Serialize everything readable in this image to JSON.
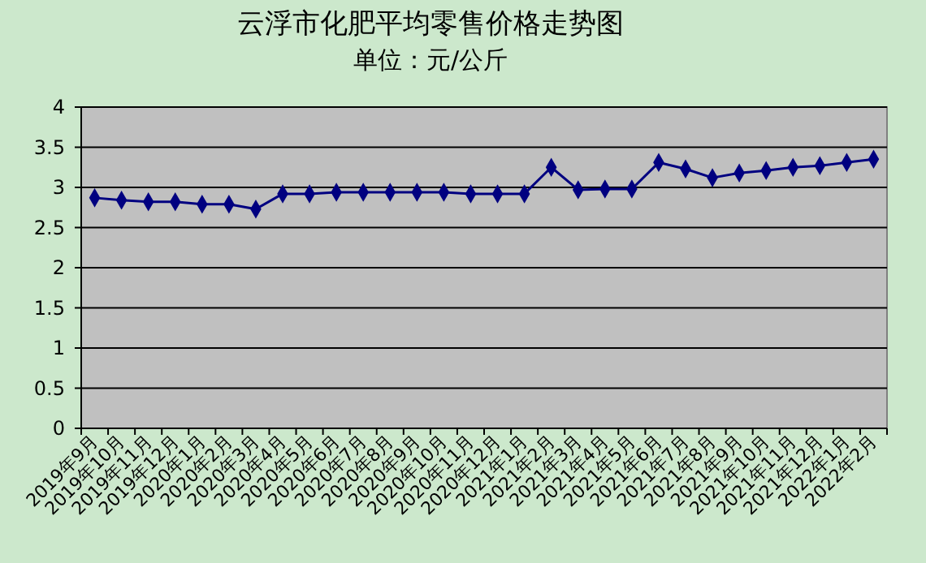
{
  "chart_data": {
    "type": "line",
    "title": "云浮市化肥平均零售价格走势图",
    "subtitle": "单位：元/公斤",
    "categories": [
      "2019年9月",
      "2019年10月",
      "2019年11月",
      "2019年12月",
      "2020年1月",
      "2020年2月",
      "2020年3月",
      "2020年4月",
      "2020年5月",
      "2020年6月",
      "2020年7月",
      "2020年8月",
      "2020年9月",
      "2020年10月",
      "2020年11月",
      "2020年12月",
      "2021年1月",
      "2021年2月",
      "2021年3月",
      "2021年4月",
      "2021年5月",
      "2021年6月",
      "2021年7月",
      "2021年8月",
      "2021年9月",
      "2021年10月",
      "2021年11月",
      "2021年12月",
      "2022年1月",
      "2022年2月"
    ],
    "series": [
      {
        "color": "#000080",
        "values": [
          2.87,
          2.84,
          2.82,
          2.82,
          2.79,
          2.79,
          2.73,
          2.92,
          2.92,
          2.94,
          2.94,
          2.94,
          2.94,
          2.94,
          2.92,
          2.92,
          2.92,
          3.25,
          2.97,
          2.98,
          2.98,
          3.31,
          3.23,
          3.12,
          3.18,
          3.21,
          3.25,
          3.27,
          3.31,
          3.35
        ]
      }
    ],
    "ylim": [
      0,
      4
    ],
    "yticks": [
      0,
      0.5,
      1,
      1.5,
      2,
      2.5,
      3,
      3.5,
      4
    ],
    "grid": "y",
    "marker": "diamond",
    "line_style": "solid"
  }
}
